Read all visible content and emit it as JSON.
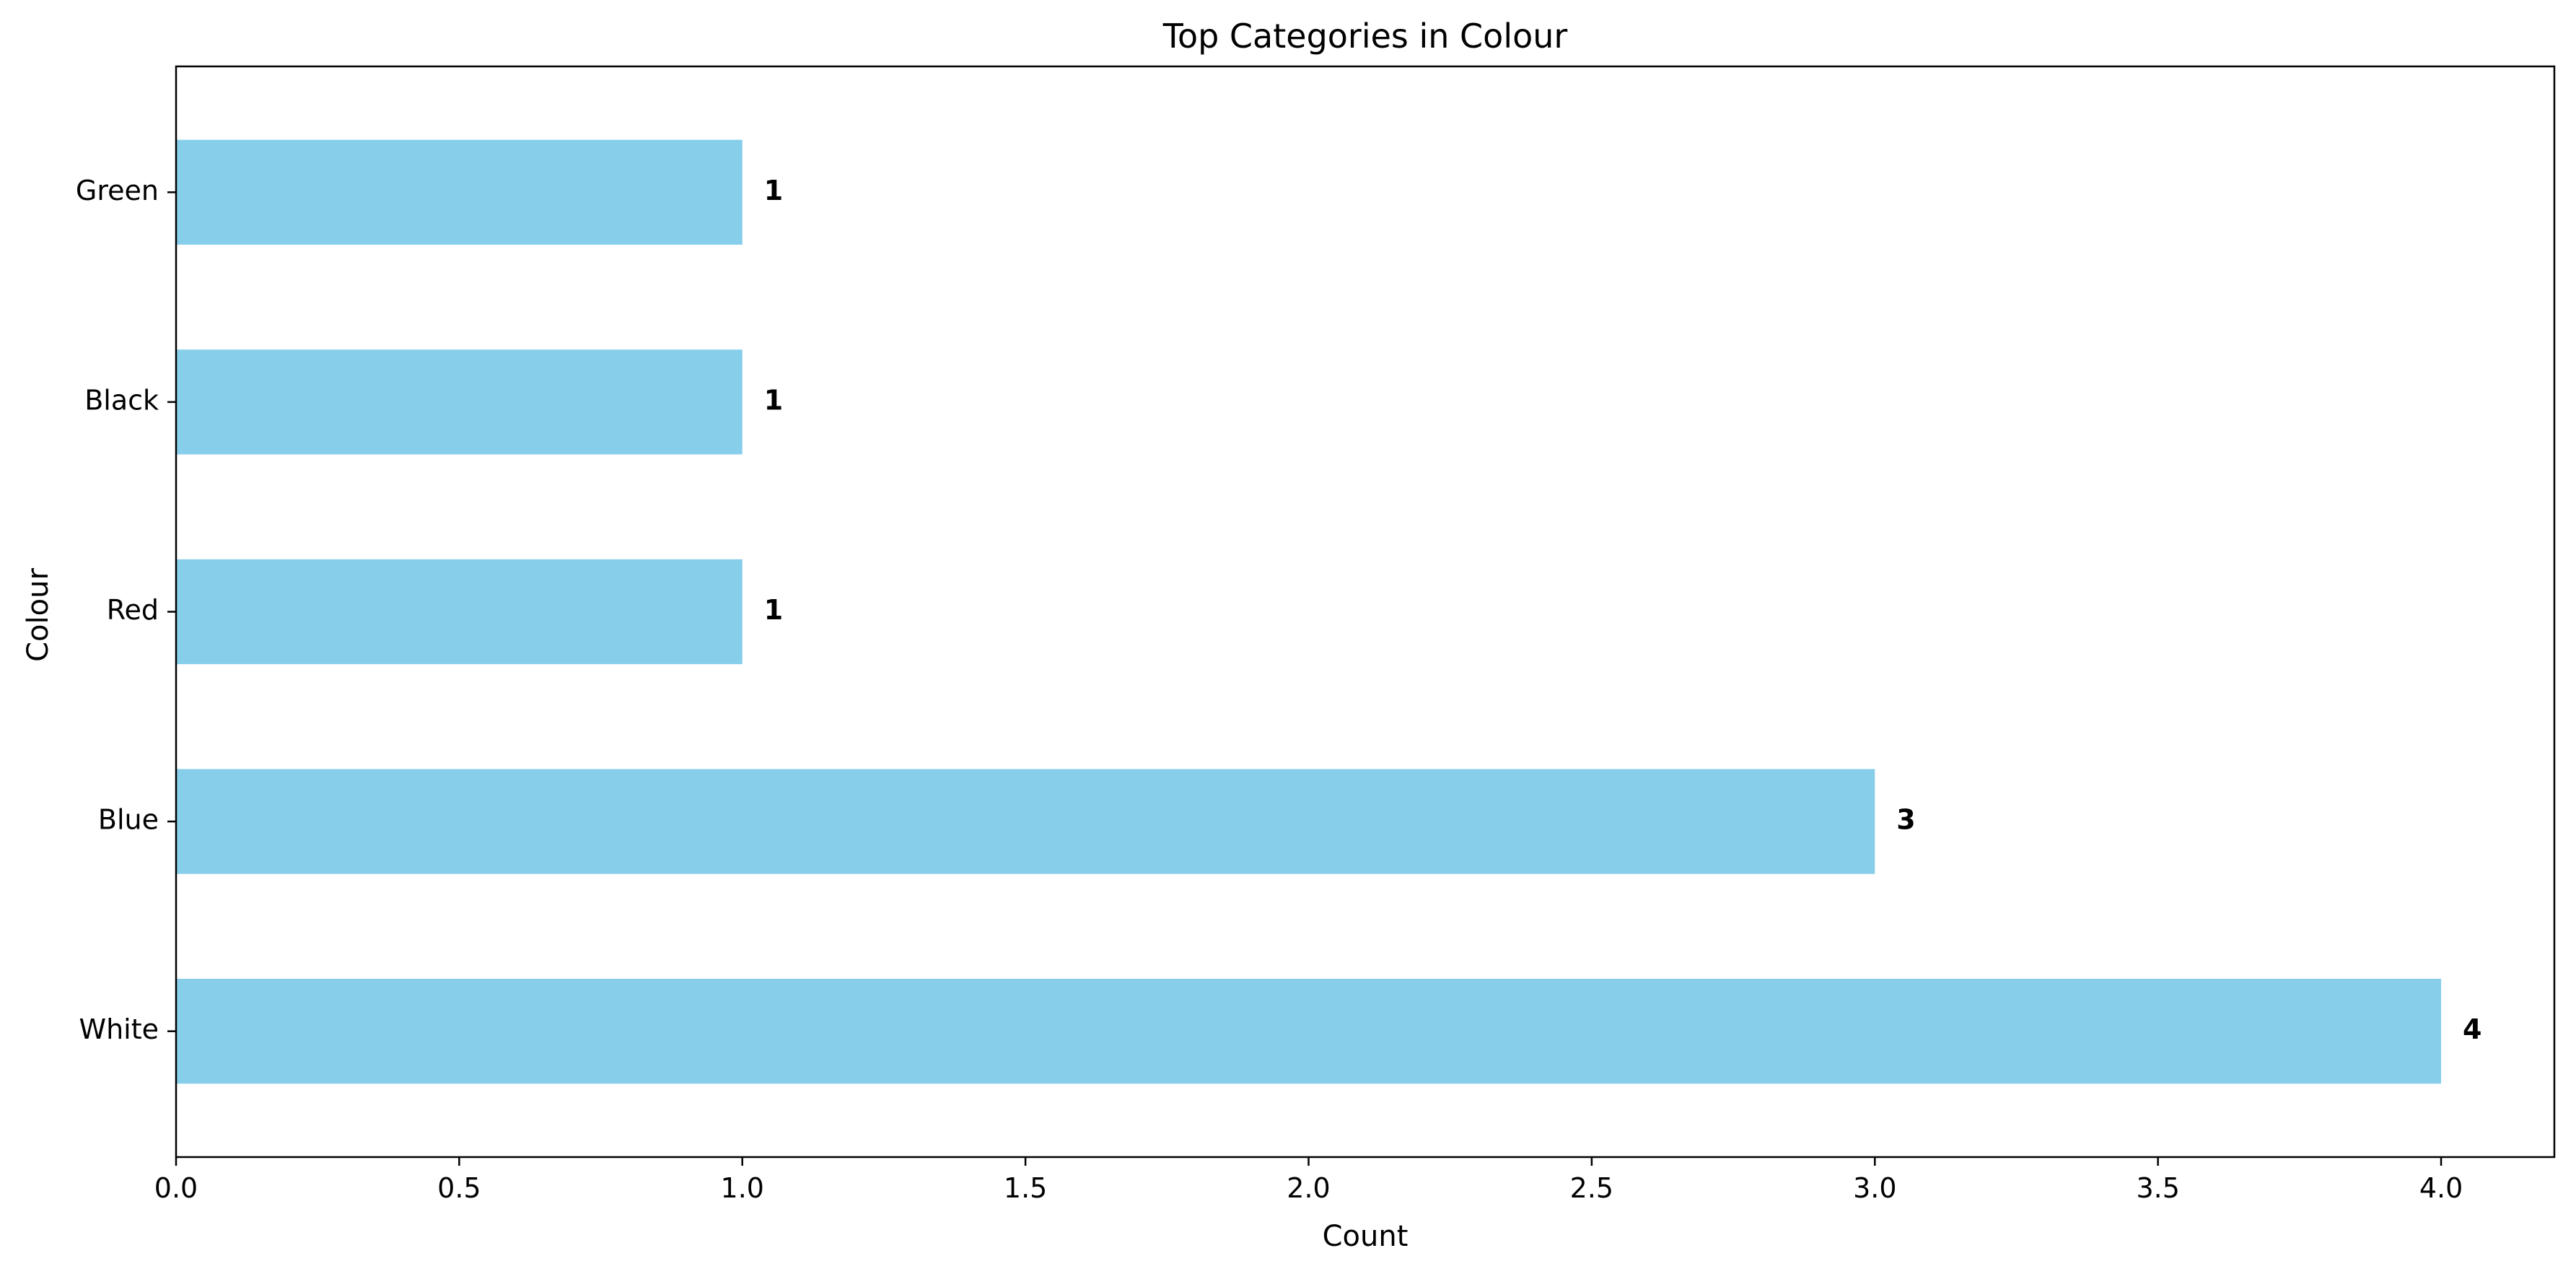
{
  "chart_data": {
    "type": "bar",
    "orientation": "horizontal",
    "title": "Top Categories in Colour",
    "xlabel": "Count",
    "ylabel": "Colour",
    "categories": [
      "White",
      "Blue",
      "Red",
      "Black",
      "Green"
    ],
    "values": [
      4,
      3,
      1,
      1,
      1
    ],
    "value_labels": [
      "4",
      "3",
      "1",
      "1",
      "1"
    ],
    "xlim": [
      0,
      4.2
    ],
    "xticks": [
      0.0,
      0.5,
      1.0,
      1.5,
      2.0,
      2.5,
      3.0,
      3.5,
      4.0
    ],
    "xtick_labels": [
      "0.0",
      "0.5",
      "1.0",
      "1.5",
      "2.0",
      "2.5",
      "3.0",
      "3.5",
      "4.0"
    ],
    "grid": false,
    "legend": "none",
    "bar_color": "#87CEEB"
  }
}
